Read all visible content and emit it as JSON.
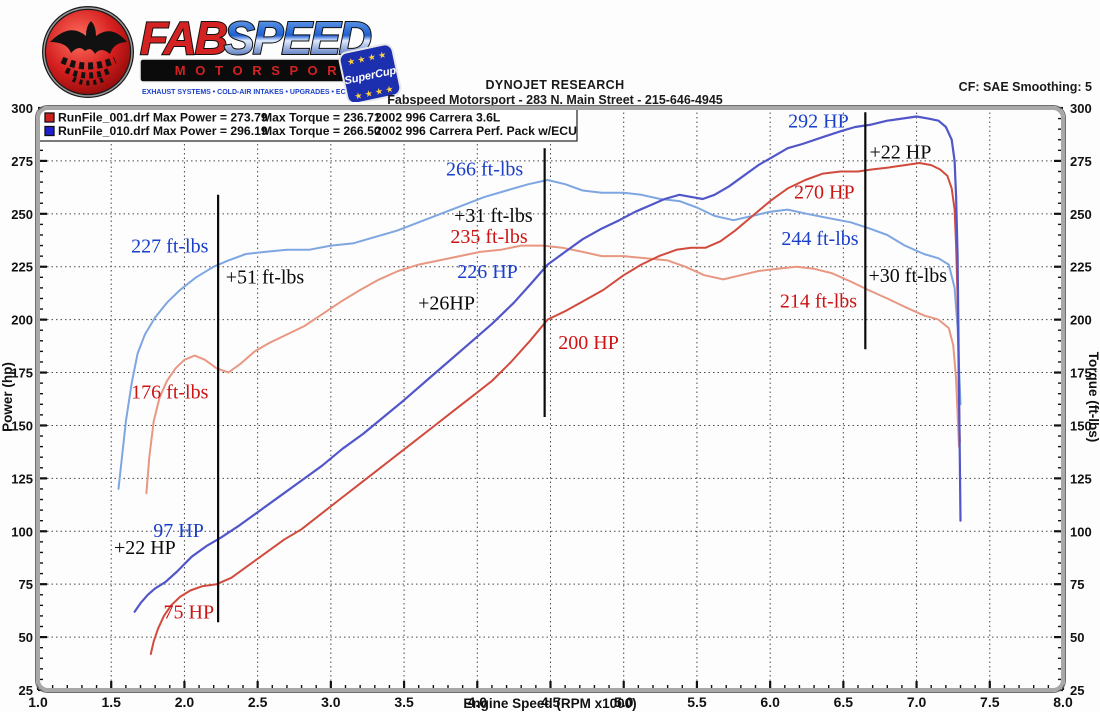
{
  "header": {
    "logo": {
      "word1": "FAB",
      "word2": "SPEED",
      "bar": "M O T O R S P O R T",
      "tagline": "EXHAUST SYSTEMS  •  COLD-AIR INTAKES  •  UPGRADES  •  ECU TUNING",
      "badge": "SuperCup",
      "colors": {
        "word1": "#d42222",
        "word2": "#1e5fd0",
        "bar_text": "#d42222",
        "badge_bg": "#1c2fae"
      }
    },
    "center_line1": "DYNOJET RESEARCH",
    "center_line2": "Fabspeed Motorsport - 283 N. Main Street - 215-646-4945",
    "right": "CF: SAE  Smoothing: 5"
  },
  "chart_data": {
    "type": "line",
    "title": "",
    "xlabel": "Engine Speed (RPM x1000)",
    "ylabel_left": "Power (hp)",
    "ylabel_right": "Torque (ft-lbs)",
    "xlim": [
      1.0,
      8.0
    ],
    "ylim": [
      25,
      300
    ],
    "x_major_step": 0.5,
    "x_minor_step": 0.1,
    "y_major_step": 25,
    "y_minor_step": 5,
    "grid": "dotted",
    "legend_position": "top-left",
    "legend": [
      {
        "swatch": "#cc2020",
        "file": "RunFile_001.drf",
        "max_power": "Max Power = 273.79",
        "max_torque": "Max Torque = 236.71",
        "desc": "2002 996 Carrera 3.6L"
      },
      {
        "swatch": "#2020cc",
        "file": "RunFile_010.drf",
        "max_power": "Max Power = 296.19",
        "max_torque": "Max Torque = 266.50",
        "desc": "2002 996 Carrera Perf. Pack w/ECU"
      }
    ],
    "palette": {
      "blue": "#1a3fc8",
      "red": "#cc1414",
      "black": "#0a0a0a"
    },
    "series": [
      {
        "name": "stock-torque",
        "color": "#e89781",
        "width": 2,
        "points": [
          [
            1.74,
            118
          ],
          [
            1.76,
            135
          ],
          [
            1.79,
            152
          ],
          [
            1.83,
            163
          ],
          [
            1.88,
            171
          ],
          [
            1.94,
            177
          ],
          [
            2.0,
            181
          ],
          [
            2.07,
            183
          ],
          [
            2.14,
            181
          ],
          [
            2.22,
            177
          ],
          [
            2.3,
            175
          ],
          [
            2.38,
            179
          ],
          [
            2.48,
            185
          ],
          [
            2.58,
            189
          ],
          [
            2.7,
            193
          ],
          [
            2.82,
            197
          ],
          [
            2.95,
            203
          ],
          [
            3.08,
            209
          ],
          [
            3.2,
            214
          ],
          [
            3.33,
            219
          ],
          [
            3.46,
            223
          ],
          [
            3.6,
            226
          ],
          [
            3.74,
            228
          ],
          [
            3.88,
            230
          ],
          [
            4.02,
            232
          ],
          [
            4.16,
            233
          ],
          [
            4.3,
            235
          ],
          [
            4.45,
            235
          ],
          [
            4.58,
            234
          ],
          [
            4.72,
            232
          ],
          [
            4.85,
            230
          ],
          [
            5.0,
            230
          ],
          [
            5.15,
            229
          ],
          [
            5.3,
            228
          ],
          [
            5.42,
            225
          ],
          [
            5.55,
            221
          ],
          [
            5.68,
            219
          ],
          [
            5.8,
            221
          ],
          [
            5.92,
            223
          ],
          [
            6.05,
            224
          ],
          [
            6.18,
            225
          ],
          [
            6.3,
            224
          ],
          [
            6.42,
            222
          ],
          [
            6.55,
            218
          ],
          [
            6.67,
            214
          ],
          [
            6.8,
            210
          ],
          [
            6.92,
            206
          ],
          [
            7.05,
            202
          ],
          [
            7.15,
            200
          ],
          [
            7.22,
            196
          ],
          [
            7.25,
            188
          ],
          [
            7.27,
            172
          ],
          [
            7.28,
            155
          ],
          [
            7.29,
            140
          ]
        ]
      },
      {
        "name": "perf-torque",
        "color": "#7ea6e0",
        "width": 2,
        "points": [
          [
            1.55,
            120
          ],
          [
            1.57,
            133
          ],
          [
            1.6,
            152
          ],
          [
            1.64,
            170
          ],
          [
            1.68,
            184
          ],
          [
            1.73,
            193
          ],
          [
            1.8,
            201
          ],
          [
            1.88,
            208
          ],
          [
            1.97,
            214
          ],
          [
            2.08,
            220
          ],
          [
            2.2,
            225
          ],
          [
            2.3,
            228
          ],
          [
            2.42,
            231
          ],
          [
            2.55,
            232
          ],
          [
            2.7,
            233
          ],
          [
            2.85,
            233
          ],
          [
            3.0,
            235
          ],
          [
            3.15,
            236
          ],
          [
            3.3,
            239
          ],
          [
            3.45,
            242
          ],
          [
            3.6,
            246
          ],
          [
            3.75,
            250
          ],
          [
            3.9,
            254
          ],
          [
            4.05,
            258
          ],
          [
            4.2,
            261
          ],
          [
            4.35,
            264
          ],
          [
            4.48,
            266
          ],
          [
            4.6,
            264
          ],
          [
            4.72,
            261
          ],
          [
            4.85,
            260
          ],
          [
            5.0,
            260
          ],
          [
            5.12,
            259
          ],
          [
            5.25,
            257
          ],
          [
            5.38,
            256
          ],
          [
            5.5,
            253
          ],
          [
            5.62,
            249
          ],
          [
            5.75,
            247
          ],
          [
            5.88,
            249
          ],
          [
            6.0,
            251
          ],
          [
            6.12,
            252
          ],
          [
            6.25,
            250
          ],
          [
            6.4,
            248
          ],
          [
            6.55,
            246
          ],
          [
            6.68,
            243
          ],
          [
            6.8,
            240
          ],
          [
            6.92,
            235
          ],
          [
            7.05,
            231
          ],
          [
            7.15,
            229
          ],
          [
            7.22,
            226
          ],
          [
            7.26,
            215
          ],
          [
            7.28,
            196
          ],
          [
            7.29,
            178
          ],
          [
            7.3,
            160
          ]
        ]
      },
      {
        "name": "stock-power",
        "color": "#d14b3d",
        "width": 2,
        "points": [
          [
            1.77,
            42
          ],
          [
            1.79,
            48
          ],
          [
            1.82,
            54
          ],
          [
            1.86,
            60
          ],
          [
            1.91,
            65
          ],
          [
            1.97,
            69
          ],
          [
            2.04,
            72
          ],
          [
            2.12,
            74
          ],
          [
            2.22,
            75
          ],
          [
            2.32,
            78
          ],
          [
            2.44,
            84
          ],
          [
            2.56,
            90
          ],
          [
            2.68,
            96
          ],
          [
            2.8,
            101
          ],
          [
            2.93,
            108
          ],
          [
            3.06,
            115
          ],
          [
            3.19,
            122
          ],
          [
            3.32,
            129
          ],
          [
            3.45,
            136
          ],
          [
            3.58,
            143
          ],
          [
            3.71,
            150
          ],
          [
            3.84,
            157
          ],
          [
            3.97,
            164
          ],
          [
            4.1,
            171
          ],
          [
            4.23,
            180
          ],
          [
            4.36,
            190
          ],
          [
            4.48,
            200
          ],
          [
            4.6,
            204
          ],
          [
            4.73,
            209
          ],
          [
            4.86,
            214
          ],
          [
            5.0,
            221
          ],
          [
            5.12,
            226
          ],
          [
            5.24,
            230
          ],
          [
            5.36,
            233
          ],
          [
            5.46,
            234
          ],
          [
            5.56,
            234
          ],
          [
            5.66,
            237
          ],
          [
            5.76,
            242
          ],
          [
            5.88,
            249
          ],
          [
            6.0,
            256
          ],
          [
            6.12,
            262
          ],
          [
            6.24,
            266
          ],
          [
            6.36,
            269
          ],
          [
            6.48,
            270
          ],
          [
            6.6,
            270
          ],
          [
            6.7,
            271
          ],
          [
            6.82,
            272
          ],
          [
            6.92,
            273
          ],
          [
            7.02,
            274
          ],
          [
            7.1,
            273
          ],
          [
            7.16,
            271
          ],
          [
            7.21,
            268
          ],
          [
            7.24,
            262
          ],
          [
            7.26,
            252
          ],
          [
            7.27,
            235
          ],
          [
            7.28,
            210
          ],
          [
            7.285,
            185
          ],
          [
            7.29,
            160
          ],
          [
            7.295,
            142
          ]
        ]
      },
      {
        "name": "perf-power",
        "color": "#5156c8",
        "width": 2.2,
        "points": [
          [
            1.66,
            62
          ],
          [
            1.7,
            66
          ],
          [
            1.75,
            70
          ],
          [
            1.8,
            73
          ],
          [
            1.87,
            76
          ],
          [
            1.95,
            81
          ],
          [
            2.05,
            88
          ],
          [
            2.15,
            93
          ],
          [
            2.25,
            97
          ],
          [
            2.38,
            103
          ],
          [
            2.52,
            110
          ],
          [
            2.66,
            117
          ],
          [
            2.8,
            124
          ],
          [
            2.94,
            131
          ],
          [
            3.08,
            139
          ],
          [
            3.22,
            146
          ],
          [
            3.36,
            154
          ],
          [
            3.5,
            162
          ],
          [
            3.65,
            171
          ],
          [
            3.8,
            180
          ],
          [
            3.95,
            189
          ],
          [
            4.1,
            198
          ],
          [
            4.25,
            208
          ],
          [
            4.38,
            218
          ],
          [
            4.48,
            226
          ],
          [
            4.6,
            232
          ],
          [
            4.72,
            238
          ],
          [
            4.85,
            243
          ],
          [
            4.97,
            247
          ],
          [
            5.08,
            251
          ],
          [
            5.18,
            254
          ],
          [
            5.28,
            257
          ],
          [
            5.38,
            259
          ],
          [
            5.46,
            258
          ],
          [
            5.54,
            257
          ],
          [
            5.62,
            259
          ],
          [
            5.72,
            263
          ],
          [
            5.82,
            268
          ],
          [
            5.92,
            273
          ],
          [
            6.02,
            277
          ],
          [
            6.12,
            281
          ],
          [
            6.22,
            283
          ],
          [
            6.35,
            286
          ],
          [
            6.48,
            289
          ],
          [
            6.58,
            291
          ],
          [
            6.68,
            292
          ],
          [
            6.8,
            294
          ],
          [
            6.9,
            295
          ],
          [
            7.0,
            296
          ],
          [
            7.08,
            295
          ],
          [
            7.15,
            294
          ],
          [
            7.2,
            291
          ],
          [
            7.24,
            285
          ],
          [
            7.26,
            275
          ],
          [
            7.27,
            258
          ],
          [
            7.28,
            230
          ],
          [
            7.285,
            200
          ],
          [
            7.29,
            168
          ],
          [
            7.295,
            135
          ],
          [
            7.3,
            105
          ]
        ]
      }
    ],
    "marker_lines": [
      {
        "rpm": 2.23,
        "from": 57,
        "to": 259
      },
      {
        "rpm": 4.46,
        "from": 154,
        "to": 281
      },
      {
        "rpm": 6.65,
        "from": 186,
        "to": 298
      }
    ],
    "annotations": [
      {
        "text": "227 ft-lbs",
        "color": "blue",
        "rpm": 1.9,
        "val": 235
      },
      {
        "text": "+51 ft-lbs",
        "color": "black",
        "rpm": 2.55,
        "val": 220.5
      },
      {
        "text": "176 ft-lbs",
        "color": "red",
        "rpm": 1.9,
        "val": 166
      },
      {
        "text": "266 ft-lbs",
        "color": "blue",
        "rpm": 4.05,
        "val": 271.5
      },
      {
        "text": "+31 ft-lbs",
        "color": "black",
        "rpm": 4.11,
        "val": 249.5
      },
      {
        "text": "235 ft-lbs",
        "color": "red",
        "rpm": 4.08,
        "val": 239.5
      },
      {
        "text": "226 HP",
        "color": "blue",
        "rpm": 4.07,
        "val": 223
      },
      {
        "text": "+26HP",
        "color": "black",
        "rpm": 3.79,
        "val": 208
      },
      {
        "text": "200 HP",
        "color": "red",
        "rpm": 4.76,
        "val": 189.5
      },
      {
        "text": "292 HP",
        "color": "blue",
        "rpm": 6.33,
        "val": 294
      },
      {
        "text": "+22 HP",
        "color": "black",
        "rpm": 6.89,
        "val": 279.5
      },
      {
        "text": "270 HP",
        "color": "red",
        "rpm": 6.37,
        "val": 260.5
      },
      {
        "text": "244 ft-lbs",
        "color": "blue",
        "rpm": 6.34,
        "val": 238.5
      },
      {
        "text": "+30 ft-lbs",
        "color": "black",
        "rpm": 6.94,
        "val": 221
      },
      {
        "text": "214 ft-lbs",
        "color": "red",
        "rpm": 6.33,
        "val": 209
      },
      {
        "text": "97 HP",
        "color": "blue",
        "rpm": 1.96,
        "val": 100.5
      },
      {
        "text": "+22 HP",
        "color": "black",
        "rpm": 1.73,
        "val": 92.5
      },
      {
        "text": "75 HP",
        "color": "red",
        "rpm": 2.03,
        "val": 62
      }
    ]
  }
}
